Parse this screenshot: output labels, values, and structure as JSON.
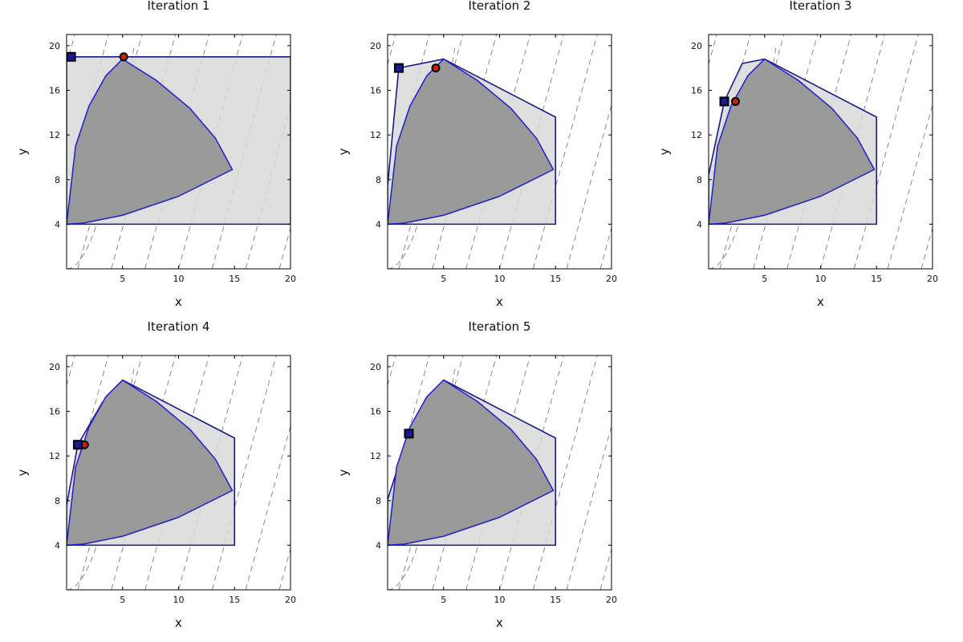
{
  "colors": {
    "outer_fill": "#d9d9d9",
    "outer_stroke": "#1a1a80",
    "feasible_fill": "#999999",
    "curve_stroke": "#1f1fcc",
    "contour": "#6e6e6e",
    "square_fill": "#1a1a99",
    "dot_fill": "#cc2200",
    "marker_edge": "#000000"
  },
  "chart_data": [
    {
      "type": "line",
      "title": "Iteration 1",
      "xlabel": "x",
      "ylabel": "y",
      "xlim": [
        0,
        20
      ],
      "ylim": [
        0,
        21
      ],
      "xticks": [
        "5",
        "10",
        "15",
        "20"
      ],
      "yticks": [
        "4",
        "8",
        "12",
        "16",
        "20"
      ],
      "grid": false,
      "series": [
        {
          "role": "outer-approximation",
          "points": [
            [
              0,
              4
            ],
            [
              20,
              4
            ],
            [
              20,
              19
            ],
            [
              0,
              19
            ]
          ]
        },
        {
          "role": "feasible-region-boundary",
          "points": [
            [
              0,
              4
            ],
            [
              0.8,
              11
            ],
            [
              2,
              14.6
            ],
            [
              3.5,
              17.3
            ],
            [
              5,
              18.8
            ],
            [
              8,
              16.9
            ],
            [
              11,
              14.4
            ],
            [
              13.3,
              11.7
            ],
            [
              14.8,
              8.9
            ],
            [
              10,
              6.5
            ],
            [
              5,
              4.8
            ],
            [
              1.5,
              4.1
            ],
            [
              0,
              4
            ]
          ]
        }
      ],
      "markers": {
        "square": [
          0.4,
          19
        ],
        "circle": [
          5.1,
          19
        ]
      }
    },
    {
      "type": "line",
      "title": "Iteration 2",
      "xlabel": "x",
      "ylabel": "y",
      "xlim": [
        0,
        20
      ],
      "ylim": [
        0,
        21
      ],
      "xticks": [
        "5",
        "10",
        "15",
        "20"
      ],
      "yticks": [
        "4",
        "8",
        "12",
        "16",
        "20"
      ],
      "grid": false,
      "series": [
        {
          "role": "outer-approximation",
          "points": [
            [
              0,
              4
            ],
            [
              15,
              4
            ],
            [
              15,
              13.6
            ],
            [
              5,
              18.8
            ],
            [
              1,
              18
            ],
            [
              0,
              7.5
            ]
          ]
        },
        {
          "role": "feasible-region-boundary",
          "points": [
            [
              0,
              4
            ],
            [
              0.8,
              11
            ],
            [
              2,
              14.6
            ],
            [
              3.5,
              17.3
            ],
            [
              5,
              18.8
            ],
            [
              8,
              16.9
            ],
            [
              11,
              14.4
            ],
            [
              13.3,
              11.7
            ],
            [
              14.8,
              8.9
            ],
            [
              10,
              6.5
            ],
            [
              5,
              4.8
            ],
            [
              1.5,
              4.1
            ],
            [
              0,
              4
            ]
          ]
        }
      ],
      "markers": {
        "square": [
          1,
          18
        ],
        "circle": [
          4.3,
          18
        ]
      }
    },
    {
      "type": "line",
      "title": "Iteration 3",
      "xlabel": "x",
      "ylabel": "y",
      "xlim": [
        0,
        20
      ],
      "ylim": [
        0,
        21
      ],
      "xticks": [
        "5",
        "10",
        "15",
        "20"
      ],
      "yticks": [
        "4",
        "8",
        "12",
        "16",
        "20"
      ],
      "grid": false,
      "series": [
        {
          "role": "outer-approximation",
          "points": [
            [
              0,
              4
            ],
            [
              15,
              4
            ],
            [
              15,
              13.6
            ],
            [
              5,
              18.8
            ],
            [
              3,
              18.4
            ],
            [
              1.4,
              15
            ],
            [
              0,
              8.4
            ]
          ]
        },
        {
          "role": "feasible-region-boundary",
          "points": [
            [
              0,
              4
            ],
            [
              0.8,
              11
            ],
            [
              2,
              14.6
            ],
            [
              3.5,
              17.3
            ],
            [
              5,
              18.8
            ],
            [
              8,
              16.9
            ],
            [
              11,
              14.4
            ],
            [
              13.3,
              11.7
            ],
            [
              14.8,
              8.9
            ],
            [
              10,
              6.5
            ],
            [
              5,
              4.8
            ],
            [
              1.5,
              4.1
            ],
            [
              0,
              4
            ]
          ]
        }
      ],
      "markers": {
        "square": [
          1.4,
          15
        ],
        "circle": [
          2.4,
          15
        ]
      }
    },
    {
      "type": "line",
      "title": "Iteration 4",
      "xlabel": "x",
      "ylabel": "y",
      "xlim": [
        0,
        20
      ],
      "ylim": [
        0,
        21
      ],
      "xticks": [
        "5",
        "10",
        "15",
        "20"
      ],
      "yticks": [
        "4",
        "8",
        "12",
        "16",
        "20"
      ],
      "grid": false,
      "series": [
        {
          "role": "outer-approximation",
          "points": [
            [
              0,
              4
            ],
            [
              15,
              4
            ],
            [
              15,
              13.6
            ],
            [
              5,
              18.8
            ],
            [
              3.2,
              16.8
            ],
            [
              1,
              13
            ],
            [
              0,
              7.6
            ]
          ]
        },
        {
          "role": "feasible-region-boundary",
          "points": [
            [
              0,
              4
            ],
            [
              0.8,
              11
            ],
            [
              2,
              14.6
            ],
            [
              3.5,
              17.3
            ],
            [
              5,
              18.8
            ],
            [
              8,
              16.9
            ],
            [
              11,
              14.4
            ],
            [
              13.3,
              11.7
            ],
            [
              14.8,
              8.9
            ],
            [
              10,
              6.5
            ],
            [
              5,
              4.8
            ],
            [
              1.5,
              4.1
            ],
            [
              0,
              4
            ]
          ]
        }
      ],
      "markers": {
        "square": [
          1,
          13
        ],
        "circle": [
          1.6,
          13
        ]
      }
    },
    {
      "type": "line",
      "title": "Iteration 5",
      "xlabel": "x",
      "ylabel": "y",
      "xlim": [
        0,
        20
      ],
      "ylim": [
        0,
        21
      ],
      "xticks": [
        "5",
        "10",
        "15",
        "20"
      ],
      "yticks": [
        "4",
        "8",
        "12",
        "16",
        "20"
      ],
      "grid": false,
      "series": [
        {
          "role": "outer-approximation",
          "points": [
            [
              0,
              4
            ],
            [
              15,
              4
            ],
            [
              15,
              13.6
            ],
            [
              5,
              18.8
            ],
            [
              1.9,
              14
            ],
            [
              0,
              8.1
            ]
          ]
        },
        {
          "role": "feasible-region-boundary",
          "points": [
            [
              0,
              4
            ],
            [
              0.8,
              11
            ],
            [
              2,
              14.6
            ],
            [
              3.5,
              17.3
            ],
            [
              5,
              18.8
            ],
            [
              8,
              16.9
            ],
            [
              11,
              14.4
            ],
            [
              13.3,
              11.7
            ],
            [
              14.8,
              8.9
            ],
            [
              10,
              6.5
            ],
            [
              5,
              4.8
            ],
            [
              1.5,
              4.1
            ],
            [
              0,
              4
            ]
          ]
        }
      ],
      "markers": {
        "square": [
          1.9,
          14
        ],
        "circle": [
          1.9,
          14
        ]
      }
    }
  ]
}
